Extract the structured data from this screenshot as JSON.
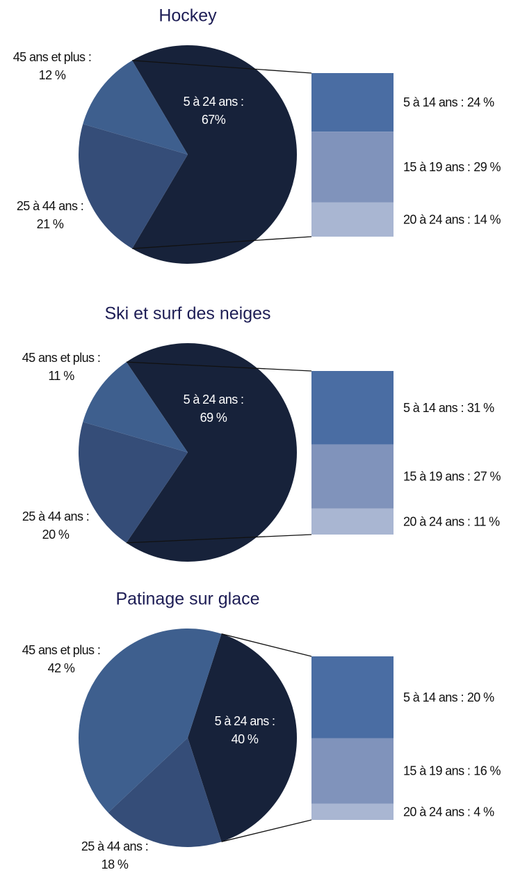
{
  "chart_data": [
    {
      "type": "pie",
      "title": "Hockey",
      "categories": [
        "5 à 24 ans :",
        "25 à 44 ans :",
        "45 ans et plus :"
      ],
      "values": [
        67,
        21,
        12
      ],
      "value_labels": [
        "67%",
        "21 %",
        "12 %"
      ],
      "colors": [
        "#17223a",
        "#354d78",
        "#3e5f8e"
      ],
      "bar": {
        "categories": [
          "5 à 14 ans :",
          "15 à 19 ans :",
          "20 à 24 ans :"
        ],
        "values": [
          24,
          29,
          14
        ],
        "value_labels": [
          "24 %",
          "29 %",
          "14 %"
        ],
        "colors": [
          "#4a6da3",
          "#8093bb",
          "#a9b6d2"
        ]
      }
    },
    {
      "type": "pie",
      "title": "Ski et surf des neiges",
      "categories": [
        "5 à 24 ans :",
        "25 à 44 ans :",
        "45 ans et plus :"
      ],
      "values": [
        69,
        20,
        11
      ],
      "value_labels": [
        "69 %",
        "20 %",
        "11 %"
      ],
      "colors": [
        "#17223a",
        "#354d78",
        "#3e5f8e"
      ],
      "bar": {
        "categories": [
          "5 à 14 ans :",
          "15 à 19 ans :",
          "20 à 24 ans :"
        ],
        "values": [
          31,
          27,
          11
        ],
        "value_labels": [
          "31 %",
          "27 %",
          "11 %"
        ],
        "colors": [
          "#4a6da3",
          "#8093bb",
          "#a9b6d2"
        ]
      }
    },
    {
      "type": "pie",
      "title": "Patinage sur glace",
      "categories": [
        "5 à 24 ans :",
        "25 à 44 ans :",
        "45 ans et plus :"
      ],
      "values": [
        40,
        18,
        42
      ],
      "value_labels": [
        "40 %",
        "18 %",
        "42 %"
      ],
      "colors": [
        "#17223a",
        "#354d78",
        "#3e5f8e"
      ],
      "bar": {
        "categories": [
          "5 à 14 ans :",
          "15 à 19 ans :",
          "20 à 24 ans :"
        ],
        "values": [
          20,
          16,
          4
        ],
        "value_labels": [
          "20 %",
          "16 %",
          "4 %"
        ],
        "colors": [
          "#4a6da3",
          "#8093bb",
          "#a9b6d2"
        ]
      }
    }
  ]
}
